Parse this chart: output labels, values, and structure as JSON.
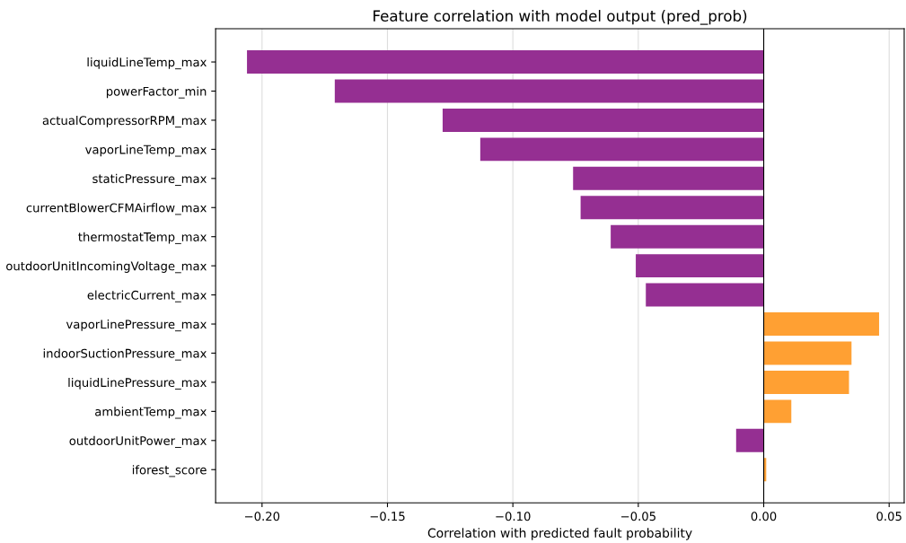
{
  "chart_data": {
    "type": "bar",
    "orientation": "horizontal",
    "title": "Feature correlation with model output (pred_prob)",
    "xlabel": "Correlation with predicted fault probability",
    "categories": [
      "liquidLineTemp_max",
      "powerFactor_min",
      "actualCompressorRPM_max",
      "vaporLineTemp_max",
      "staticPressure_max",
      "currentBlowerCFMAirflow_max",
      "thermostatTemp_max",
      "outdoorUnitIncomingVoltage_max",
      "electricCurrent_max",
      "vaporLinePressure_max",
      "indoorSuctionPressure_max",
      "liquidLinePressure_max",
      "ambientTemp_max",
      "outdoorUnitPower_max",
      "iforest_score"
    ],
    "values": [
      -0.206,
      -0.171,
      -0.128,
      -0.113,
      -0.076,
      -0.073,
      -0.061,
      -0.051,
      -0.047,
      0.046,
      0.035,
      0.034,
      0.011,
      -0.011,
      0.001
    ],
    "colors": [
      "#952f92",
      "#952f92",
      "#952f92",
      "#952f92",
      "#952f92",
      "#952f92",
      "#952f92",
      "#952f92",
      "#952f92",
      "#ffa033",
      "#ffa033",
      "#ffa033",
      "#ffa033",
      "#952f92",
      "#ffa033"
    ],
    "xlim": [
      -0.2185,
      0.056
    ],
    "xticks": [
      {
        "value": -0.2,
        "label": "−0.20"
      },
      {
        "value": -0.15,
        "label": "−0.15"
      },
      {
        "value": -0.1,
        "label": "−0.10"
      },
      {
        "value": -0.05,
        "label": "−0.05"
      },
      {
        "value": 0,
        "label": "0.00"
      },
      {
        "value": 0.05,
        "label": "0.05"
      }
    ],
    "ref_lines": [
      {
        "axis": "x",
        "value": 0,
        "color": "#000000"
      }
    ],
    "grid": "x",
    "legend": false
  }
}
